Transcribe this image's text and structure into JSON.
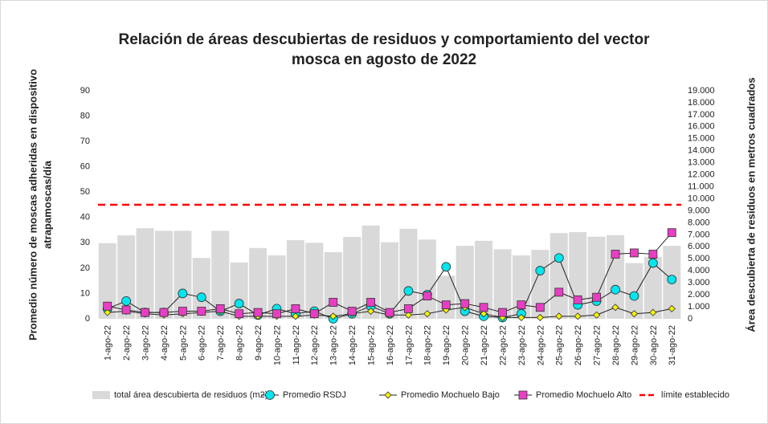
{
  "chart_data": {
    "type": "combo",
    "title": [
      "Relación de áreas descubiertas de residuos y comportamiento del vector",
      "mosca en agosto de 2022"
    ],
    "ylabel": [
      "Promedio número de moscas adheridas en dispositivo",
      "atrapamoscas/día"
    ],
    "y2label": "Área descubierta de residuos en metros cuadrados",
    "categories": [
      "1-ago-22",
      "2-ago-22",
      "3-ago-22",
      "4-ago-22",
      "5-ago-22",
      "6-ago-22",
      "7-ago-22",
      "8-ago-22",
      "9-ago-22",
      "10-ago-22",
      "11-ago-22",
      "12-ago-22",
      "13-ago-22",
      "14-ago-22",
      "15-ago-22",
      "16-ago-22",
      "17-ago-22",
      "18-ago-22",
      "19-ago-22",
      "20-ago-22",
      "21-ago-22",
      "22-ago-22",
      "23-ago-22",
      "24-ago-22",
      "25-ago-22",
      "26-ago-22",
      "27-ago-22",
      "28-ago-22",
      "29-ago-22",
      "30-ago-22",
      "31-ago-22"
    ],
    "ylim": [
      0,
      90
    ],
    "yticks": [
      0,
      10,
      20,
      30,
      40,
      50,
      60,
      70,
      80,
      90
    ],
    "y2lim": [
      0,
      19000
    ],
    "y2ticks": [
      0,
      {
        "value": 1000,
        "label": "1.000"
      },
      {
        "value": 2000,
        "label": "2.000"
      },
      {
        "value": 3000,
        "label": "3.000"
      },
      {
        "value": 4000,
        "label": "4.000"
      },
      {
        "value": 5000,
        "label": "5.000"
      },
      {
        "value": 6000,
        "label": "6.000"
      },
      {
        "value": 7000,
        "label": "7.000"
      },
      {
        "value": 8000,
        "label": "8.000"
      },
      {
        "value": 9000,
        "label": "9.000"
      },
      {
        "value": 10000,
        "label": "10.000"
      },
      {
        "value": 11000,
        "label": "11.000"
      },
      {
        "value": 12000,
        "label": "12.000"
      },
      {
        "value": 13000,
        "label": "13.000"
      },
      {
        "value": 14000,
        "label": "14.000"
      },
      {
        "value": 15000,
        "label": "15.000"
      },
      {
        "value": 16000,
        "label": "16.000"
      },
      {
        "value": 17000,
        "label": "17.000"
      },
      {
        "value": 18000,
        "label": "18.000"
      },
      {
        "value": 19000,
        "label": "19.000"
      }
    ],
    "series": [
      {
        "name": "total área descubierta de residuos (m2)",
        "type": "bar",
        "axis": "y2",
        "color": "#d9d9d9",
        "values": [
          6300,
          6950,
          7550,
          7330,
          7330,
          5070,
          7330,
          4700,
          5900,
          5280,
          6550,
          6330,
          5550,
          6820,
          7770,
          6380,
          7500,
          6600,
          3590,
          6080,
          6500,
          5790,
          5280,
          5740,
          7140,
          7220,
          6840,
          6970,
          4640,
          5170,
          6080
        ]
      },
      {
        "name": "Promedio RSDJ",
        "type": "line",
        "marker": "circle",
        "color": "#00e5ee",
        "values": [
          4,
          7,
          2.5,
          2.5,
          10,
          8.5,
          3,
          6,
          1.5,
          4,
          2,
          3,
          0,
          2,
          5,
          2,
          11,
          9.5,
          20.5,
          3,
          1,
          0.5,
          2,
          19,
          24,
          5.5,
          7,
          11.5,
          9,
          22,
          15.5
        ]
      },
      {
        "name": "Promedio Mochuelo Bajo",
        "type": "line",
        "marker": "diamond",
        "color": "#f5f500",
        "values": [
          2.5,
          3,
          2,
          1.5,
          2,
          2.5,
          3,
          1,
          1,
          1,
          1,
          1.5,
          1,
          2,
          3,
          1.5,
          1.5,
          2,
          3.5,
          4.5,
          2,
          0.5,
          0.5,
          0.5,
          1,
          1,
          1.5,
          4.5,
          2,
          2.5,
          4
        ]
      },
      {
        "name": "Promedio Mochuelo Alto",
        "type": "line",
        "marker": "square",
        "color": "#e83ec4",
        "values": [
          5,
          3.5,
          2.5,
          2.5,
          3,
          3,
          4,
          2,
          2.5,
          2,
          4,
          2,
          6.5,
          3,
          6.5,
          2.5,
          4,
          9,
          5.5,
          6,
          4.5,
          2.5,
          5.5,
          4.5,
          10.5,
          7.5,
          8.5,
          25.5,
          26,
          25.5,
          34
        ]
      }
    ],
    "reference_line": {
      "name": "límite establecido",
      "value": 45,
      "color": "#ff0000"
    }
  }
}
